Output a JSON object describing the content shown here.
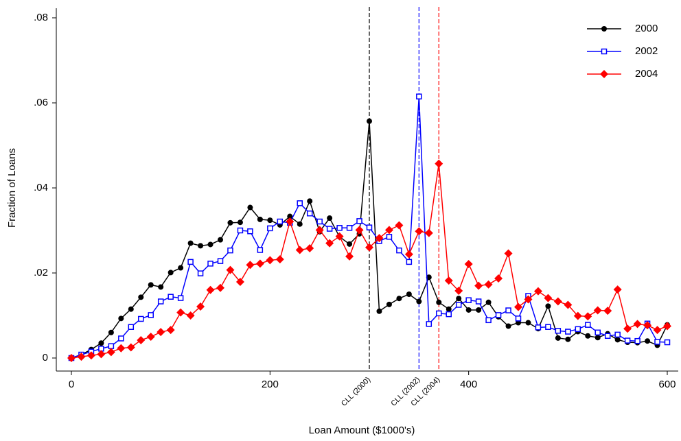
{
  "chart_data": {
    "type": "line",
    "x_label": "Loan Amount ($1000's)",
    "y_label": "Fraction of Loans",
    "x": [
      0,
      10,
      20,
      30,
      40,
      50,
      60,
      70,
      80,
      90,
      100,
      110,
      120,
      130,
      140,
      150,
      160,
      170,
      180,
      190,
      200,
      210,
      220,
      230,
      240,
      250,
      260,
      270,
      280,
      290,
      300,
      310,
      320,
      330,
      340,
      350,
      360,
      370,
      380,
      390,
      400,
      410,
      420,
      430,
      440,
      450,
      460,
      470,
      480,
      490,
      500,
      510,
      520,
      530,
      540,
      550,
      560,
      570,
      580,
      590,
      600
    ],
    "series": [
      {
        "name": "2000",
        "color": "#000000",
        "marker": "circle",
        "values": [
          0,
          0.0008,
          0.002,
          0.0035,
          0.006,
          0.0093,
          0.0115,
          0.0143,
          0.0172,
          0.0167,
          0.0201,
          0.0212,
          0.027,
          0.0264,
          0.0267,
          0.0278,
          0.0318,
          0.0319,
          0.0354,
          0.0326,
          0.0324,
          0.0313,
          0.0333,
          0.0315,
          0.0369,
          0.0297,
          0.0329,
          0.0285,
          0.0268,
          0.0292,
          0.0557,
          0.011,
          0.0126,
          0.014,
          0.015,
          0.0133,
          0.019,
          0.0131,
          0.0115,
          0.014,
          0.0113,
          0.0113,
          0.0131,
          0.0097,
          0.0075,
          0.0083,
          0.0083,
          0.0069,
          0.0122,
          0.0047,
          0.0044,
          0.0062,
          0.0052,
          0.0048,
          0.0057,
          0.0043,
          0.0037,
          0.0036,
          0.004,
          0.003,
          0.0078
        ]
      },
      {
        "name": "2002",
        "color": "#0000ff",
        "marker": "square",
        "values": [
          0,
          0.0008,
          0.0015,
          0.0022,
          0.0028,
          0.0046,
          0.0073,
          0.0092,
          0.0101,
          0.0133,
          0.0144,
          0.0141,
          0.0226,
          0.0199,
          0.0222,
          0.0228,
          0.0253,
          0.03,
          0.0298,
          0.0254,
          0.0305,
          0.0321,
          0.0318,
          0.0364,
          0.034,
          0.0321,
          0.0304,
          0.0306,
          0.0306,
          0.0322,
          0.0307,
          0.0275,
          0.0285,
          0.0253,
          0.0226,
          0.0615,
          0.008,
          0.0105,
          0.0103,
          0.0125,
          0.0136,
          0.0133,
          0.0089,
          0.0101,
          0.0112,
          0.0093,
          0.0146,
          0.0072,
          0.0073,
          0.0064,
          0.0062,
          0.0068,
          0.0078,
          0.006,
          0.0052,
          0.0055,
          0.0041,
          0.004,
          0.0081,
          0.0038,
          0.0037
        ]
      },
      {
        "name": "2004",
        "color": "#ff0000",
        "marker": "diamond",
        "values": [
          0,
          0.0003,
          0.0006,
          0.0009,
          0.0014,
          0.0023,
          0.0025,
          0.0042,
          0.005,
          0.0061,
          0.0066,
          0.0107,
          0.01,
          0.0121,
          0.016,
          0.0165,
          0.0207,
          0.0179,
          0.0219,
          0.0222,
          0.023,
          0.0232,
          0.0321,
          0.0254,
          0.0258,
          0.0301,
          0.027,
          0.0286,
          0.0239,
          0.0301,
          0.026,
          0.0282,
          0.0301,
          0.0312,
          0.0244,
          0.0298,
          0.0294,
          0.0457,
          0.0182,
          0.0158,
          0.0221,
          0.017,
          0.0173,
          0.0187,
          0.0246,
          0.012,
          0.0138,
          0.0157,
          0.0141,
          0.0133,
          0.0125,
          0.0099,
          0.0098,
          0.0112,
          0.0111,
          0.0161,
          0.0069,
          0.008,
          0.0077,
          0.0066,
          0.0075
        ]
      }
    ],
    "reference_lines": [
      {
        "x": 300,
        "label": "CLL (2000)",
        "color": "#000000"
      },
      {
        "x": 350,
        "label": "CLL (2002)",
        "color": "#0000ff"
      },
      {
        "x": 370,
        "label": "CLL (2004)",
        "color": "#ff0000"
      }
    ],
    "xlim": [
      0,
      600
    ],
    "xticks": [
      0,
      200,
      400,
      600
    ],
    "ylim": [
      0,
      0.08
    ],
    "yticks": [
      0,
      {
        "value": 0.02,
        "label": ".02"
      },
      {
        "value": 0.04,
        "label": ".04"
      },
      {
        "value": 0.06,
        "label": ".06"
      },
      {
        "value": 0.08,
        "label": ".08"
      }
    ],
    "legend": "top-right"
  }
}
